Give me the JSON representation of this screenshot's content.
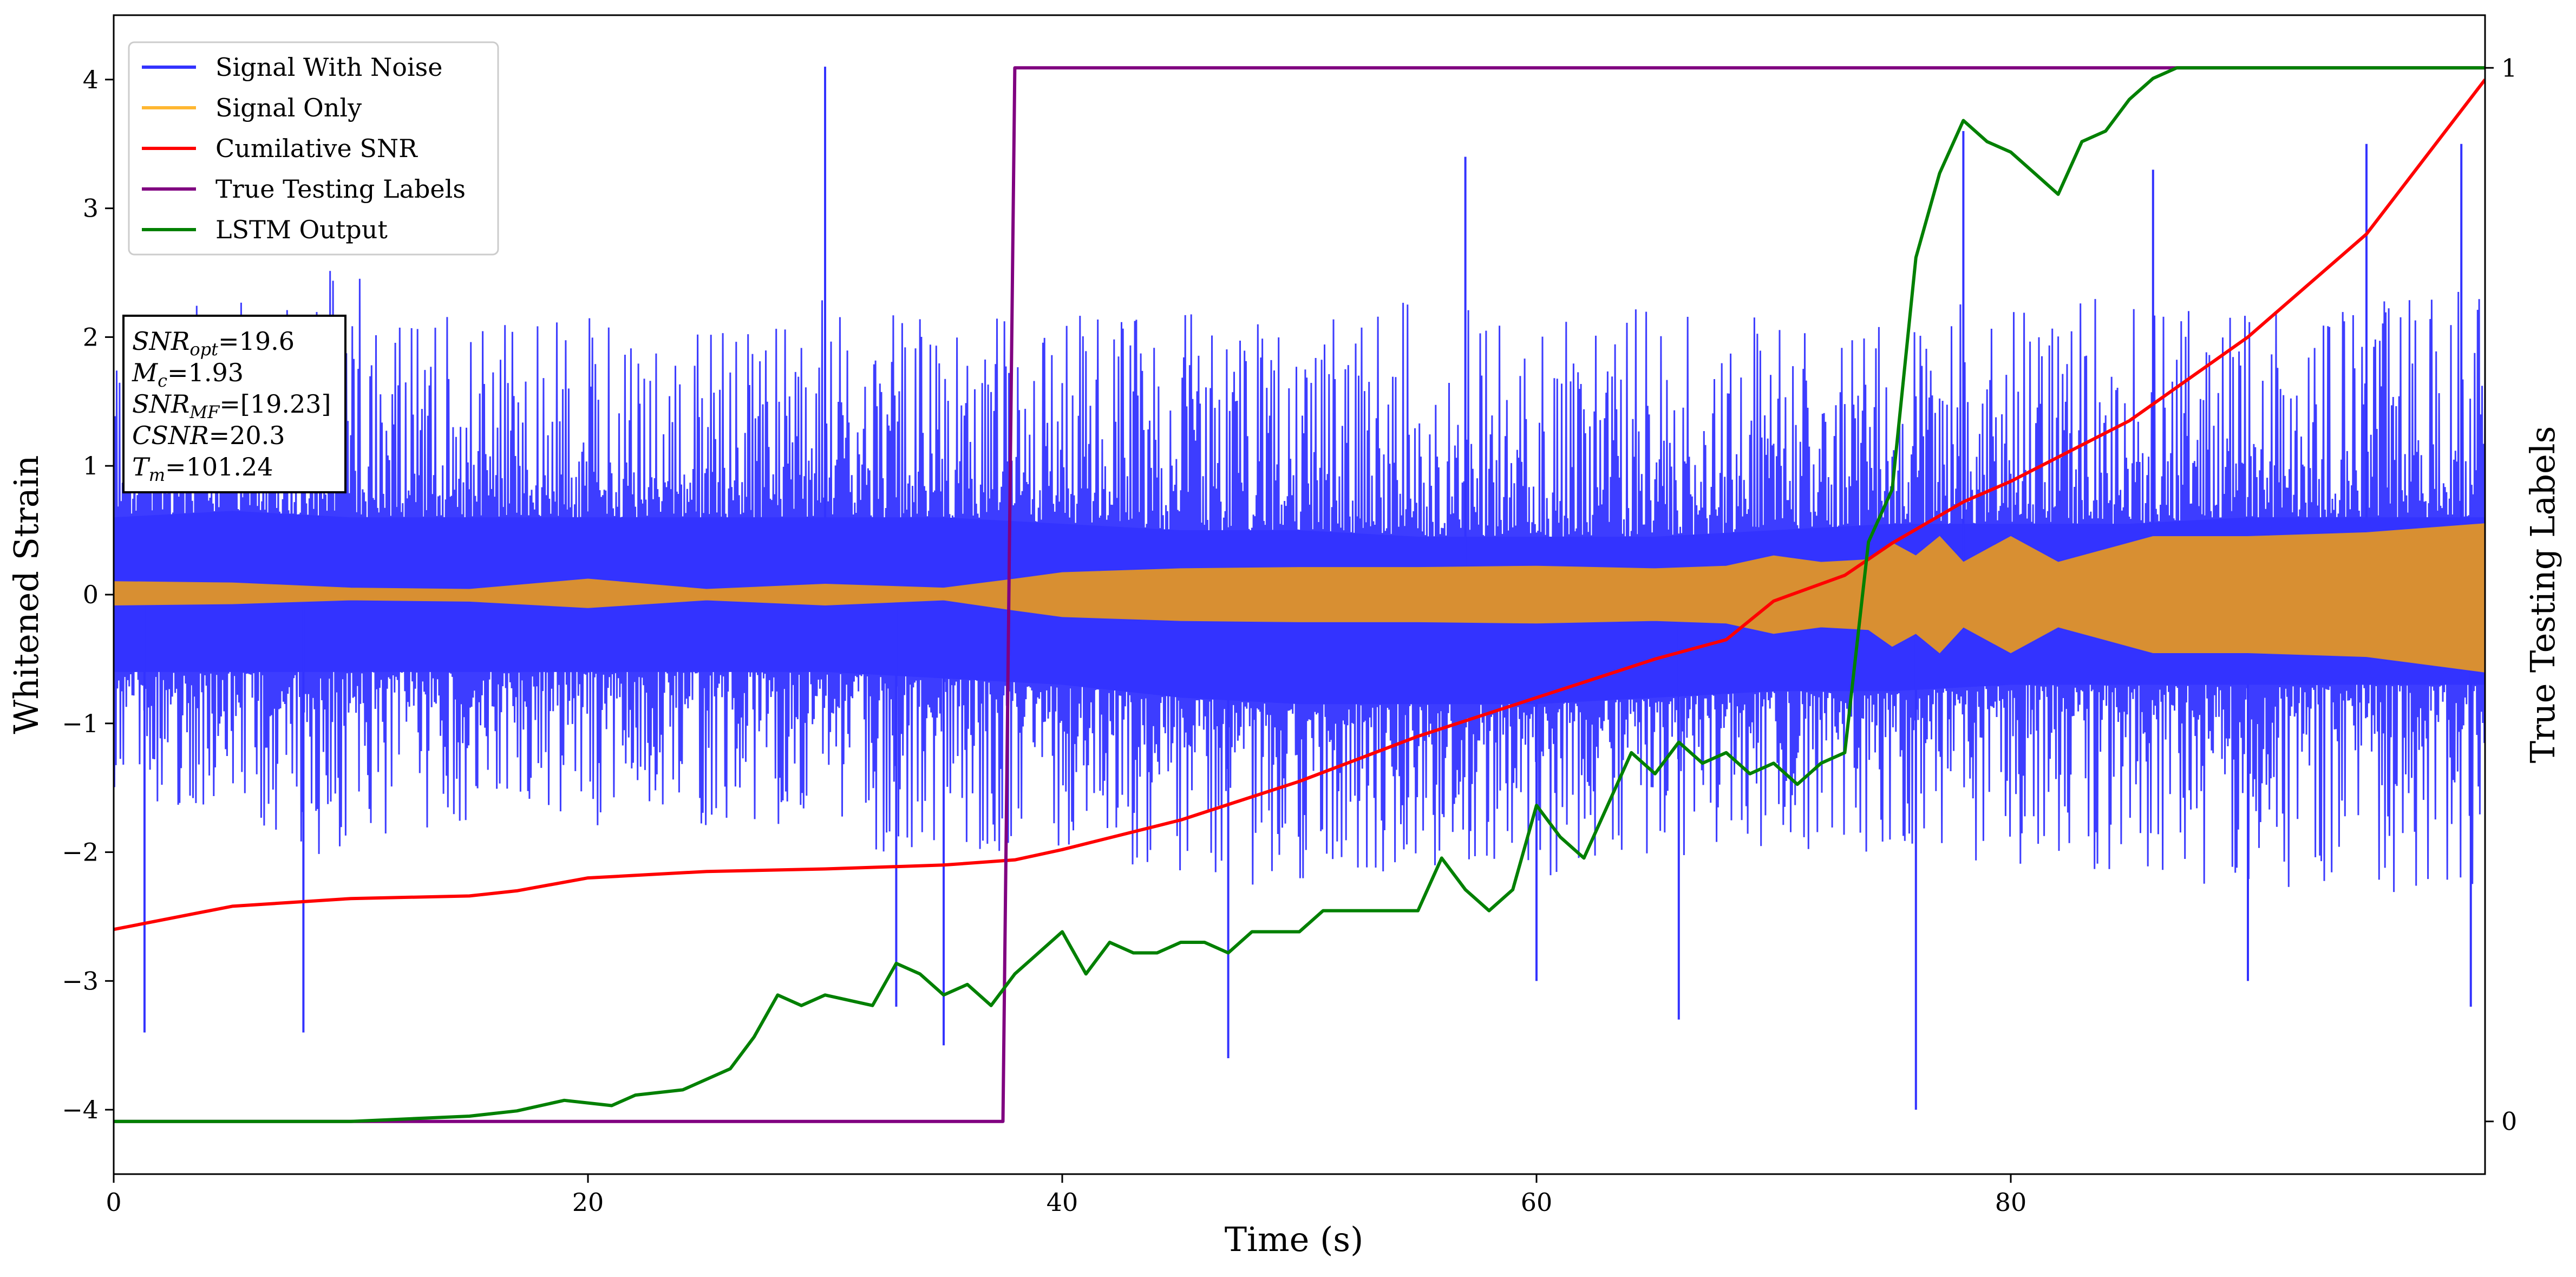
{
  "chart_data": {
    "type": "line",
    "title": "",
    "xlabel": "Time (s)",
    "ylabel": "Whitened Strain",
    "ylabel_right": "True Testing Labels",
    "xlim": [
      0,
      100
    ],
    "ylim": [
      -4.5,
      4.5
    ],
    "ylim_right": [
      -0.05,
      1.05
    ],
    "x_ticks": [
      0,
      20,
      40,
      60,
      80
    ],
    "x_tick_labels": [
      "0",
      "20",
      "40",
      "60",
      "80"
    ],
    "y_ticks": [
      -4,
      -3,
      -2,
      -1,
      0,
      1,
      2,
      3,
      4
    ],
    "y_tick_labels": [
      "−4",
      "−3",
      "−2",
      "−1",
      "0",
      "1",
      "2",
      "3",
      "4"
    ],
    "y_ticks_right": [
      0,
      1
    ],
    "y_tick_labels_right": [
      "0",
      "1"
    ],
    "grid": false,
    "legend_position": "top-left",
    "legend": [
      {
        "label": "Signal With Noise",
        "color": "#3333ff"
      },
      {
        "label": "Signal Only",
        "color": "#ffb732"
      },
      {
        "label": "Cumilative SNR",
        "color": "#ff0000"
      },
      {
        "label": "True Testing Labels",
        "color": "#800080"
      },
      {
        "label": "LSTM Output",
        "color": "#008000"
      }
    ],
    "annotation": [
      {
        "main": "SNR",
        "sub": "opt",
        "rest": "=19.6"
      },
      {
        "main": "M",
        "sub": "c",
        "rest": "=1.93"
      },
      {
        "main": "SNR",
        "sub": "MF",
        "rest": "=[19.23]"
      },
      {
        "main": "CSNR",
        "sub": "",
        "rest": "=20.3"
      },
      {
        "main": "T",
        "sub": "m",
        "rest": "=101.24"
      }
    ],
    "series": [
      {
        "name": "Signal With Noise",
        "axis": "left",
        "color": "#3333ff",
        "style": "noise-band",
        "x": [
          0,
          5,
          10,
          15,
          20,
          25,
          30,
          35,
          40,
          45,
          50,
          55,
          60,
          65,
          70,
          75,
          80,
          85,
          90,
          95,
          100
        ],
        "upper": [
          2.2,
          2.3,
          2.6,
          2.2,
          2.2,
          2.1,
          2.3,
          2.1,
          2.3,
          2.2,
          2.1,
          2.3,
          2.3,
          2.2,
          2.2,
          2.2,
          2.3,
          2.3,
          2.2,
          2.3,
          2.4
        ],
        "lower": [
          -1.5,
          -1.8,
          -2.1,
          -1.8,
          -1.8,
          -1.8,
          -2.0,
          -2.0,
          -2.0,
          -2.2,
          -2.3,
          -2.1,
          -2.2,
          -2.1,
          -2.0,
          -2.0,
          -2.1,
          -2.2,
          -2.3,
          -2.3,
          -2.4
        ],
        "band_upper": [
          0.6,
          0.65,
          0.6,
          0.6,
          0.6,
          0.6,
          0.6,
          0.6,
          0.55,
          0.5,
          0.5,
          0.45,
          0.45,
          0.45,
          0.5,
          0.55,
          0.55,
          0.55,
          0.6,
          0.6,
          0.6
        ],
        "band_lower": [
          -0.6,
          -0.6,
          -0.6,
          -0.6,
          -0.6,
          -0.6,
          -0.6,
          -0.65,
          -0.7,
          -0.8,
          -0.85,
          -0.85,
          -0.85,
          -0.8,
          -0.75,
          -0.75,
          -0.7,
          -0.7,
          -0.7,
          -0.7,
          -0.7
        ],
        "spikes": [
          [
            1.3,
            -3.4
          ],
          [
            8,
            -3.4
          ],
          [
            30,
            4.1
          ],
          [
            33,
            -3.2
          ],
          [
            35,
            -3.5
          ],
          [
            47,
            -3.6
          ],
          [
            57,
            3.4
          ],
          [
            60,
            -3.0
          ],
          [
            66,
            -3.3
          ],
          [
            76,
            -4.0
          ],
          [
            78,
            3.6
          ],
          [
            86,
            3.3
          ],
          [
            90,
            -3.0
          ],
          [
            95,
            3.5
          ],
          [
            99,
            3.5
          ],
          [
            99.4,
            -3.2
          ]
        ]
      },
      {
        "name": "Signal Only",
        "axis": "left",
        "color": "#d88f32",
        "style": "envelope",
        "x": [
          0,
          5,
          10,
          15,
          20,
          25,
          30,
          35,
          38,
          40,
          45,
          50,
          55,
          60,
          65,
          68,
          70,
          72,
          74,
          75,
          76,
          77,
          78,
          79,
          80,
          82,
          84,
          86,
          88,
          90,
          95,
          100
        ],
        "upper": [
          0.1,
          0.09,
          0.05,
          0.04,
          0.12,
          0.04,
          0.08,
          0.05,
          0.12,
          0.17,
          0.2,
          0.21,
          0.21,
          0.22,
          0.2,
          0.22,
          0.3,
          0.25,
          0.27,
          0.4,
          0.3,
          0.45,
          0.25,
          0.35,
          0.45,
          0.25,
          0.35,
          0.45,
          0.45,
          0.45,
          0.48,
          0.55
        ],
        "lower": [
          -0.08,
          -0.07,
          -0.04,
          -0.05,
          -0.1,
          -0.04,
          -0.08,
          -0.04,
          -0.12,
          -0.17,
          -0.2,
          -0.21,
          -0.21,
          -0.22,
          -0.2,
          -0.22,
          -0.3,
          -0.25,
          -0.27,
          -0.4,
          -0.3,
          -0.45,
          -0.25,
          -0.35,
          -0.45,
          -0.25,
          -0.35,
          -0.45,
          -0.45,
          -0.45,
          -0.48,
          -0.6
        ]
      },
      {
        "name": "Cumilative SNR",
        "axis": "left",
        "color": "#ff0000",
        "style": "line",
        "x": [
          0,
          5,
          10,
          15,
          17,
          20,
          25,
          30,
          35,
          38,
          40,
          45,
          50,
          55,
          60,
          65,
          68,
          70,
          73,
          75,
          78,
          80,
          85,
          90,
          95,
          100
        ],
        "y": [
          -2.6,
          -2.42,
          -2.36,
          -2.34,
          -2.3,
          -2.2,
          -2.15,
          -2.13,
          -2.1,
          -2.06,
          -1.98,
          -1.75,
          -1.45,
          -1.1,
          -0.8,
          -0.5,
          -0.35,
          -0.05,
          0.15,
          0.4,
          0.72,
          0.88,
          1.35,
          2.0,
          2.8,
          4.0
        ]
      },
      {
        "name": "True Testing Labels",
        "axis": "right",
        "color": "#800080",
        "style": "line",
        "x": [
          0,
          37.5,
          38,
          100
        ],
        "y": [
          0,
          0,
          1,
          1
        ]
      },
      {
        "name": "LSTM Output",
        "axis": "right",
        "color": "#008000",
        "style": "line",
        "x": [
          0,
          10,
          15,
          17,
          19,
          21,
          22,
          24,
          26,
          27,
          28,
          29,
          30,
          32,
          33,
          34,
          35,
          36,
          37,
          38,
          39,
          40,
          41,
          42,
          43,
          44,
          45,
          46,
          47,
          48,
          49,
          50,
          51,
          52,
          53,
          54,
          55,
          56,
          57,
          58,
          59,
          60,
          61,
          62,
          63,
          64,
          65,
          66,
          67,
          68,
          69,
          70,
          71,
          72,
          73,
          74,
          75,
          76,
          77,
          78,
          79,
          80,
          81,
          82,
          83,
          84,
          85,
          86,
          87,
          100
        ],
        "y": [
          0,
          0,
          0.005,
          0.01,
          0.02,
          0.015,
          0.025,
          0.03,
          0.05,
          0.08,
          0.12,
          0.11,
          0.12,
          0.11,
          0.15,
          0.14,
          0.12,
          0.13,
          0.11,
          0.14,
          0.16,
          0.18,
          0.14,
          0.17,
          0.16,
          0.16,
          0.17,
          0.17,
          0.16,
          0.18,
          0.18,
          0.18,
          0.2,
          0.2,
          0.2,
          0.2,
          0.2,
          0.25,
          0.22,
          0.2,
          0.22,
          0.3,
          0.27,
          0.25,
          0.3,
          0.35,
          0.33,
          0.36,
          0.34,
          0.35,
          0.33,
          0.34,
          0.32,
          0.34,
          0.35,
          0.55,
          0.6,
          0.82,
          0.9,
          0.95,
          0.93,
          0.92,
          0.9,
          0.88,
          0.93,
          0.94,
          0.97,
          0.99,
          1.0,
          1.0
        ]
      }
    ]
  }
}
